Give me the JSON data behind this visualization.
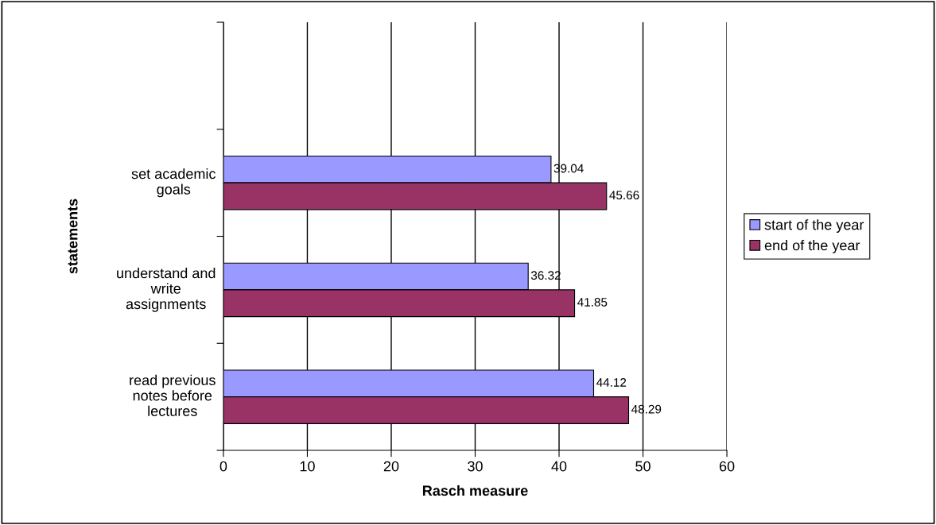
{
  "chart_data": {
    "type": "bar",
    "orientation": "horizontal",
    "xlabel": "Rasch measure",
    "ylabel": "statements",
    "categories": [
      null,
      "set academic\ngoals",
      "understand and\nwrite\nassignments",
      "read previous\nnotes before\nlectures"
    ],
    "series": [
      {
        "name": "start of the year",
        "color": "#9999ff",
        "values": [
          null,
          39.04,
          36.32,
          44.12
        ]
      },
      {
        "name": "end of the year",
        "color": "#993366",
        "values": [
          null,
          45.66,
          41.85,
          48.29
        ]
      }
    ],
    "xlim": [
      0,
      60
    ],
    "xticks": [
      0,
      10,
      20,
      30,
      40,
      50,
      60
    ],
    "grid": "x",
    "legend": "right",
    "data_labels": true
  }
}
